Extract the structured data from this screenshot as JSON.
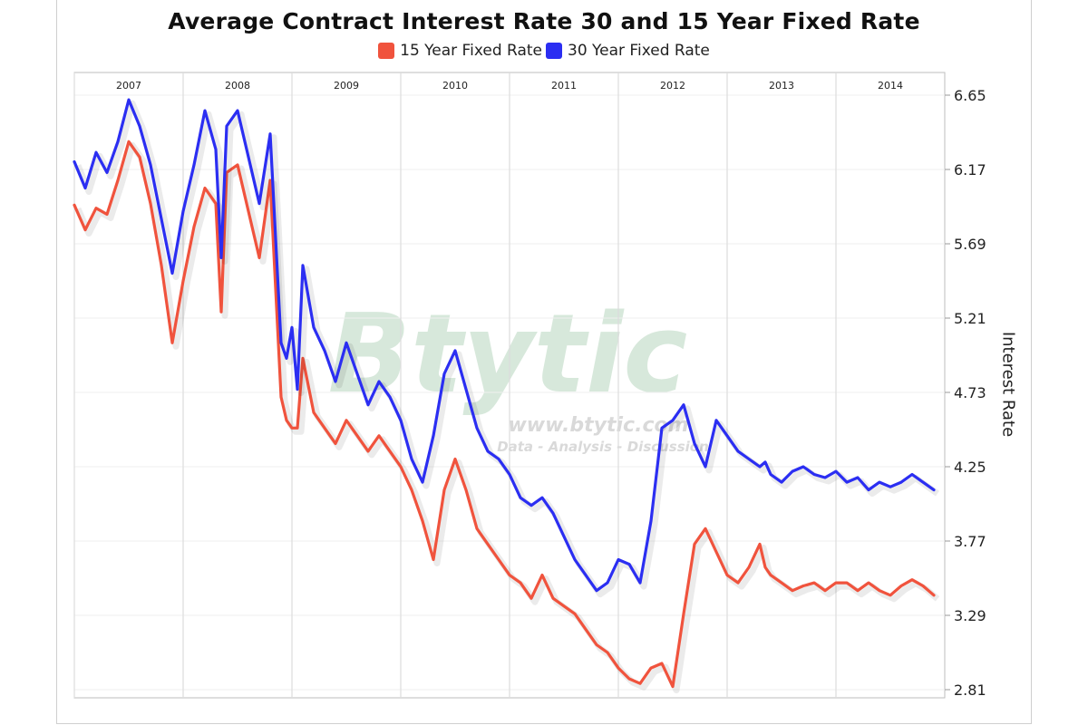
{
  "chart_data": {
    "type": "line",
    "title": "Average Contract Interest Rate 30 and 15 Year Fixed Rate",
    "ylabel": "Interest Rate",
    "xlabel": "",
    "x_ticks": [
      "2007",
      "2008",
      "2009",
      "2010",
      "2011",
      "2012",
      "2013",
      "2014"
    ],
    "y_ticks": [
      6.65,
      6.17,
      5.69,
      5.21,
      4.73,
      4.25,
      3.77,
      3.29,
      2.81
    ],
    "ylim": [
      2.81,
      6.65
    ],
    "xlim": [
      2006.5,
      2014.5
    ],
    "grid": "vertical year lines and horizontal value lines",
    "legend_position": "top-center",
    "series": [
      {
        "name": "15 Year Fixed Rate",
        "color": "#f0533d",
        "x": [
          2006.5,
          2006.6,
          2006.7,
          2006.8,
          2006.9,
          2007.0,
          2007.1,
          2007.2,
          2007.3,
          2007.4,
          2007.5,
          2007.6,
          2007.7,
          2007.8,
          2007.85,
          2007.9,
          2008.0,
          2008.1,
          2008.2,
          2008.3,
          2008.4,
          2008.45,
          2008.5,
          2008.55,
          2008.6,
          2008.7,
          2008.8,
          2008.9,
          2009.0,
          2009.1,
          2009.2,
          2009.3,
          2009.4,
          2009.5,
          2009.6,
          2009.7,
          2009.8,
          2009.9,
          2010.0,
          2010.1,
          2010.2,
          2010.3,
          2010.4,
          2010.5,
          2010.6,
          2010.7,
          2010.8,
          2010.9,
          2011.0,
          2011.1,
          2011.2,
          2011.3,
          2011.4,
          2011.5,
          2011.6,
          2011.7,
          2011.8,
          2011.9,
          2012.0,
          2012.1,
          2012.2,
          2012.3,
          2012.4,
          2012.5,
          2012.6,
          2012.7,
          2012.8,
          2012.85,
          2012.9,
          2013.0,
          2013.1,
          2013.2,
          2013.3,
          2013.4,
          2013.5,
          2013.6,
          2013.7,
          2013.8,
          2013.9,
          2014.0,
          2014.1,
          2014.2,
          2014.3,
          2014.4
        ],
        "values": [
          5.94,
          5.78,
          5.92,
          5.88,
          6.1,
          6.35,
          6.25,
          5.95,
          5.55,
          5.05,
          5.45,
          5.8,
          6.05,
          5.95,
          5.25,
          6.15,
          6.2,
          5.9,
          5.6,
          6.1,
          4.7,
          4.55,
          4.5,
          4.5,
          4.95,
          4.6,
          4.5,
          4.4,
          4.55,
          4.45,
          4.35,
          4.45,
          4.35,
          4.25,
          4.1,
          3.9,
          3.65,
          4.1,
          4.3,
          4.1,
          3.85,
          3.75,
          3.65,
          3.55,
          3.5,
          3.4,
          3.55,
          3.4,
          3.35,
          3.3,
          3.2,
          3.1,
          3.05,
          2.95,
          2.88,
          2.85,
          2.95,
          2.98,
          2.83,
          3.3,
          3.75,
          3.85,
          3.7,
          3.55,
          3.5,
          3.6,
          3.75,
          3.6,
          3.55,
          3.5,
          3.45,
          3.48,
          3.5,
          3.45,
          3.5,
          3.5,
          3.45,
          3.5,
          3.45,
          3.42,
          3.48,
          3.52,
          3.48,
          3.42
        ]
      },
      {
        "name": "30 Year Fixed Rate",
        "color": "#2b2ef2",
        "x": [
          2006.5,
          2006.6,
          2006.7,
          2006.8,
          2006.9,
          2007.0,
          2007.1,
          2007.2,
          2007.3,
          2007.4,
          2007.5,
          2007.6,
          2007.7,
          2007.8,
          2007.85,
          2007.9,
          2008.0,
          2008.1,
          2008.2,
          2008.3,
          2008.4,
          2008.45,
          2008.5,
          2008.55,
          2008.6,
          2008.7,
          2008.8,
          2008.9,
          2009.0,
          2009.1,
          2009.2,
          2009.3,
          2009.4,
          2009.5,
          2009.6,
          2009.7,
          2009.8,
          2009.9,
          2010.0,
          2010.1,
          2010.2,
          2010.3,
          2010.4,
          2010.5,
          2010.6,
          2010.7,
          2010.8,
          2010.9,
          2011.0,
          2011.1,
          2011.2,
          2011.3,
          2011.4,
          2011.5,
          2011.6,
          2011.7,
          2011.8,
          2011.9,
          2012.0,
          2012.1,
          2012.2,
          2012.3,
          2012.4,
          2012.5,
          2012.6,
          2012.7,
          2012.8,
          2012.85,
          2012.9,
          2013.0,
          2013.1,
          2013.2,
          2013.3,
          2013.4,
          2013.5,
          2013.6,
          2013.7,
          2013.8,
          2013.9,
          2014.0,
          2014.1,
          2014.2,
          2014.3,
          2014.4
        ],
        "values": [
          6.22,
          6.05,
          6.28,
          6.15,
          6.35,
          6.62,
          6.45,
          6.2,
          5.85,
          5.5,
          5.9,
          6.2,
          6.55,
          6.3,
          5.6,
          6.45,
          6.55,
          6.25,
          5.95,
          6.4,
          5.05,
          4.95,
          5.15,
          4.75,
          5.55,
          5.15,
          5.0,
          4.8,
          5.05,
          4.85,
          4.65,
          4.8,
          4.7,
          4.55,
          4.3,
          4.15,
          4.45,
          4.85,
          5.0,
          4.75,
          4.5,
          4.35,
          4.3,
          4.2,
          4.05,
          4.0,
          4.05,
          3.95,
          3.8,
          3.65,
          3.55,
          3.45,
          3.5,
          3.65,
          3.62,
          3.5,
          3.9,
          4.5,
          4.55,
          4.65,
          4.4,
          4.25,
          4.55,
          4.45,
          4.35,
          4.3,
          4.25,
          4.28,
          4.2,
          4.15,
          4.22,
          4.25,
          4.2,
          4.18,
          4.22,
          4.15,
          4.18,
          4.1,
          4.15,
          4.12,
          4.15,
          4.2,
          4.15,
          4.1
        ]
      }
    ]
  },
  "watermark": {
    "logo": "Btytic",
    "url": "www.btytic.com",
    "tagline": "Data - Analysis - Discussion"
  }
}
